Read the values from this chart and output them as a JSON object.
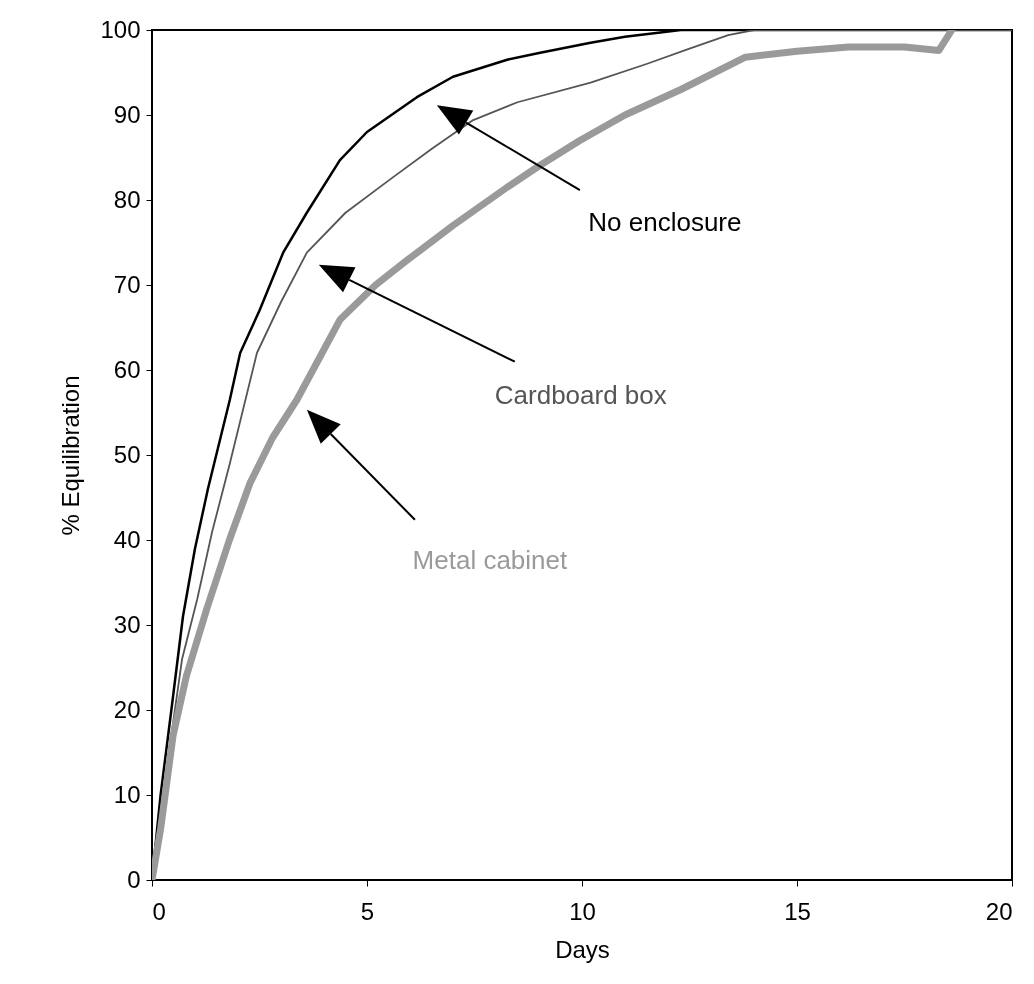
{
  "chart_data": {
    "type": "line",
    "xlabel": "Days",
    "ylabel": "% Equilibration",
    "xlim": [
      0,
      20
    ],
    "ylim": [
      0,
      100
    ],
    "xticks": [
      0,
      5,
      10,
      15,
      20
    ],
    "yticks": [
      0,
      10,
      20,
      30,
      40,
      50,
      60,
      70,
      80,
      90,
      100
    ],
    "series": [
      {
        "name": "No enclosure",
        "color": "#000000",
        "x": [
          0,
          0.2,
          0.45,
          0.72,
          1.0,
          1.3,
          1.81,
          2.05,
          2.5,
          3.05,
          3.6,
          4.37,
          5,
          6.16,
          7,
          8.26,
          9,
          10.2,
          11,
          12.3,
          14,
          17,
          20
        ],
        "values": [
          0,
          10,
          20,
          31,
          39,
          46,
          56.5,
          62,
          67,
          73.8,
          78.5,
          84.7,
          88,
          92.1,
          94.5,
          96.5,
          97.3,
          98.5,
          99.2,
          100,
          100,
          100,
          100
        ]
      },
      {
        "name": "Cardboard box",
        "color": "#555555",
        "x": [
          0,
          0.2,
          0.42,
          0.7,
          1.05,
          1.4,
          1.81,
          2.44,
          3,
          3.6,
          4.5,
          5.53,
          6.5,
          7.47,
          8.5,
          10.2,
          11.5,
          12.5,
          13.4,
          14,
          17,
          20
        ],
        "values": [
          0,
          7,
          16,
          26,
          33,
          41,
          49,
          62,
          68,
          73.8,
          78.5,
          82.4,
          86,
          89.4,
          91.5,
          93.8,
          96,
          97.8,
          99.4,
          100,
          100,
          100
        ]
      },
      {
        "name": "Metal cabinet",
        "color": "#9a9a9a",
        "x": [
          0,
          0.2,
          0.49,
          0.8,
          1.28,
          1.8,
          2.28,
          2.8,
          3.37,
          4.37,
          5.2,
          5.93,
          7,
          8.26,
          9,
          9.95,
          11,
          12.3,
          13.8,
          15,
          16.2,
          17.5,
          18.3,
          18.6
        ],
        "values": [
          0,
          6,
          17,
          24,
          32,
          40,
          46.7,
          52,
          56.5,
          65.9,
          70,
          72.9,
          77,
          81.5,
          84,
          87,
          90,
          93,
          96.8,
          97.5,
          98,
          98,
          97.6,
          100
        ]
      }
    ]
  }
}
